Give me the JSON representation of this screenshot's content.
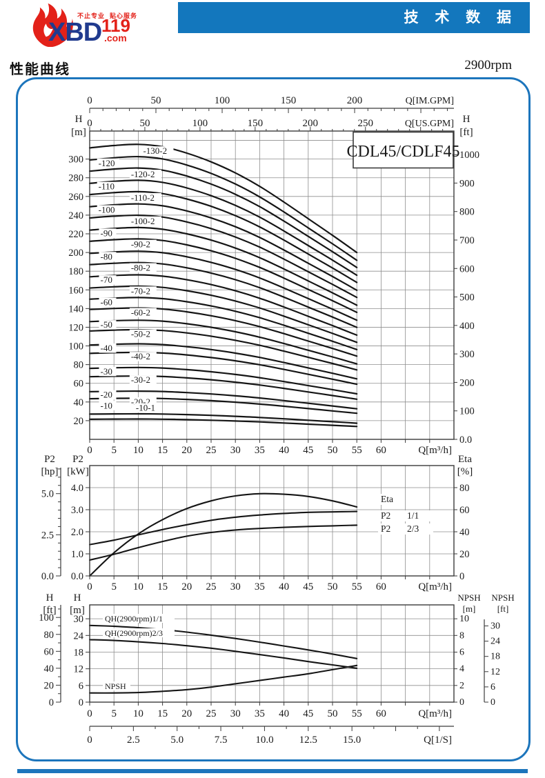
{
  "header": {
    "logo": {
      "brand": "XBD",
      "number": "119",
      "domain": ".com",
      "slogan": "不止专业  贴心服务"
    },
    "banner_title": "技 术 数 据",
    "section_title": "性能曲线",
    "speed": "2900rpm"
  },
  "chart_data": [
    {
      "type": "line",
      "title": "CDL45/CDLF45",
      "x_label": "Q[m³/h]",
      "x_ticks": [
        0,
        5,
        10,
        15,
        20,
        25,
        30,
        35,
        40,
        45,
        50,
        55,
        60
      ],
      "x_range": [
        0,
        75
      ],
      "top_im_label": "Q[IM.GPM]",
      "top_im_ticks": [
        0,
        50,
        100,
        150,
        200
      ],
      "top_us_label": "Q[US.GPM]",
      "top_us_ticks": [
        0,
        50,
        100,
        150,
        200,
        250
      ],
      "y_left_name": "H",
      "y_left_unit": "[m]",
      "y_left_ticks": [
        20,
        40,
        60,
        80,
        100,
        120,
        140,
        160,
        180,
        200,
        220,
        240,
        260,
        280,
        300
      ],
      "y_left_range": [
        0,
        330
      ],
      "y_right_name": "H",
      "y_right_unit": "[ft]",
      "y_right_values": [
        1000,
        900,
        800,
        700,
        600,
        500,
        400,
        300,
        200,
        100,
        0
      ],
      "y_right_labels": [
        "1000",
        "900",
        "800",
        "700",
        "600",
        "500",
        "400",
        "300",
        "200",
        "100",
        "0.0"
      ],
      "shape_x": [
        0,
        5,
        10,
        15,
        20,
        25,
        30,
        35,
        40,
        45,
        50,
        55
      ],
      "shape_f": [
        1.0,
        1.008,
        1.012,
        1.004,
        0.982,
        0.952,
        0.914,
        0.868,
        0.814,
        0.757,
        0.7,
        0.641
      ],
      "curves": [
        {
          "label": "-130-2",
          "h0": 312,
          "lq": 11
        },
        {
          "label": "-120",
          "h0": 299,
          "lq": 1.8
        },
        {
          "label": "-120-2",
          "h0": 287,
          "lq": 8.5
        },
        {
          "label": "-110",
          "h0": 274,
          "lq": 1.8
        },
        {
          "label": "-110-2",
          "h0": 262,
          "lq": 8.5
        },
        {
          "label": "-100",
          "h0": 249,
          "lq": 1.8
        },
        {
          "label": "-100-2",
          "h0": 237,
          "lq": 8.5
        },
        {
          "label": "-90",
          "h0": 224,
          "lq": 2.2
        },
        {
          "label": "-90-2",
          "h0": 212,
          "lq": 8.5
        },
        {
          "label": "-80",
          "h0": 199,
          "lq": 2.2
        },
        {
          "label": "-80-2",
          "h0": 187,
          "lq": 8.5
        },
        {
          "label": "-70",
          "h0": 174,
          "lq": 2.2
        },
        {
          "label": "-70-2",
          "h0": 162,
          "lq": 8.5
        },
        {
          "label": "-60",
          "h0": 150,
          "lq": 2.2
        },
        {
          "label": "-60-2",
          "h0": 139,
          "lq": 8.5
        },
        {
          "label": "-50",
          "h0": 126,
          "lq": 2.2
        },
        {
          "label": "-50-2",
          "h0": 116,
          "lq": 8.5
        },
        {
          "label": "-40",
          "h0": 101,
          "lq": 2.2
        },
        {
          "label": "-40-2",
          "h0": 92,
          "lq": 8.5
        },
        {
          "label": "-30",
          "h0": 76,
          "lq": 2.2
        },
        {
          "label": "-30-2",
          "h0": 67,
          "lq": 8.5
        },
        {
          "label": "-20",
          "h0": 51,
          "lq": 2.2
        },
        {
          "label": "-20-2",
          "h0": 43.5,
          "lq": 8.5
        },
        {
          "label": "-10",
          "h0": 27,
          "lq": 2.2,
          "lh": 33
        },
        {
          "label": "-10-1",
          "h0": 21.5,
          "lq": 9.5,
          "lh": 30.5
        }
      ]
    },
    {
      "type": "line",
      "x_label": "Q[m³/h]",
      "x_ticks": [
        0,
        5,
        10,
        15,
        20,
        25,
        30,
        35,
        40,
        45,
        50,
        55,
        60
      ],
      "q": [
        0,
        5,
        10,
        15,
        20,
        25,
        30,
        35,
        40,
        45,
        50,
        55
      ],
      "y_hp_name": "P2",
      "y_hp_unit": "[hp]",
      "y_hp_ticks": [
        "0.0",
        "2.5",
        "5.0"
      ],
      "y_kw_name": "P2",
      "y_kw_unit": "[kW]",
      "y_kw_ticks": [
        "0.0",
        "1.0",
        "2.0",
        "3.0",
        "4.0"
      ],
      "y_right_name": "Eta",
      "y_right_unit": "[%]",
      "y_right_ticks": [
        0,
        20,
        40,
        60,
        80
      ],
      "series": [
        {
          "name": "Eta",
          "axis": "eta",
          "values": [
            0,
            21,
            38,
            51,
            61,
            68,
            72.5,
            74.5,
            74,
            72,
            68,
            62.5
          ]
        },
        {
          "name": "P2 1/1",
          "axis": "kw",
          "values": [
            1.42,
            1.62,
            1.86,
            2.1,
            2.32,
            2.52,
            2.66,
            2.76,
            2.83,
            2.88,
            2.9,
            2.92
          ]
        },
        {
          "name": "P2 2/3",
          "axis": "kw",
          "values": [
            0.72,
            0.98,
            1.28,
            1.56,
            1.8,
            1.97,
            2.08,
            2.15,
            2.2,
            2.24,
            2.27,
            2.3
          ]
        }
      ],
      "curve_labels": [
        {
          "t": "Eta",
          "v": ""
        },
        {
          "t": "P2",
          "v": "1/1"
        },
        {
          "t": "P2",
          "v": "2/3"
        }
      ]
    },
    {
      "type": "line",
      "x_label": "Q[m³/h]",
      "x_ticks": [
        0,
        5,
        10,
        15,
        20,
        25,
        30,
        35,
        40,
        45,
        50,
        55,
        60
      ],
      "q": [
        0,
        5,
        10,
        15,
        20,
        25,
        30,
        35,
        40,
        45,
        50,
        55
      ],
      "y_ft_name": "H",
      "y_ft_unit": "[ft]",
      "y_ft_ticks": [
        0,
        20,
        40,
        60,
        80,
        100
      ],
      "y_m_name": "H",
      "y_m_unit": "[m]",
      "y_m_ticks": [
        0,
        6,
        12,
        18,
        24,
        30
      ],
      "npsh_m_name": "NPSH",
      "npsh_m_unit": "[m]",
      "npsh_m_ticks": [
        0,
        2,
        4,
        6,
        8,
        10
      ],
      "npsh_ft_name": "NPSH",
      "npsh_ft_unit": "[ft]",
      "npsh_ft_ticks": [
        0,
        6,
        12,
        18,
        24,
        30
      ],
      "lps_label": "Q[1/S]",
      "lps_ticks": [
        "0",
        "2.5",
        "5.0",
        "7.5",
        "10.0",
        "12.5",
        "15.0"
      ],
      "lps_values": [
        0,
        2.5,
        5,
        7.5,
        10,
        12.5,
        15
      ],
      "series": [
        {
          "name": "QH(2900rpm)1/1",
          "axis": "m",
          "values": [
            27.6,
            27.3,
            26.8,
            26.1,
            25.2,
            24.1,
            22.9,
            21.6,
            20.2,
            18.8,
            17.3,
            15.7
          ]
        },
        {
          "name": "QH(2900rpm)2/3",
          "axis": "m",
          "values": [
            22.5,
            22.2,
            21.7,
            21.1,
            20.3,
            19.4,
            18.3,
            17.1,
            15.9,
            14.6,
            13.4,
            12.2
          ]
        },
        {
          "name": "NPSH",
          "axis": "npsh",
          "values": [
            1.1,
            1.1,
            1.15,
            1.3,
            1.5,
            1.8,
            2.2,
            2.6,
            3.0,
            3.4,
            3.9,
            4.4
          ]
        }
      ],
      "curve_labels": [
        "QH(2900rpm)1/1",
        "QH(2900rpm)2/3",
        "NPSH"
      ]
    }
  ]
}
